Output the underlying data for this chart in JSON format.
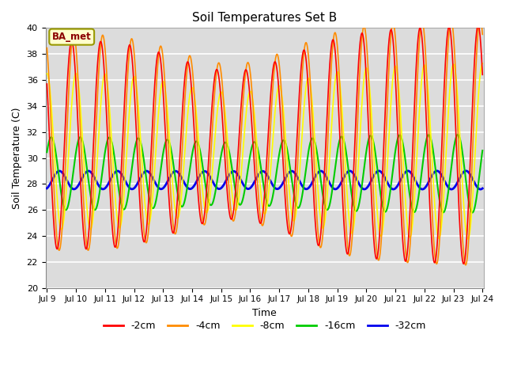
{
  "title": "Soil Temperatures Set B",
  "xlabel": "Time",
  "ylabel": "Soil Temperature (C)",
  "ylim": [
    20,
    40
  ],
  "xlim_days": [
    9,
    24
  ],
  "annotation": "BA_met",
  "series_order": [
    "-32cm",
    "-16cm",
    "-8cm",
    "-4cm",
    "-2cm"
  ],
  "colors": {
    "-2cm": "#FF0000",
    "-4cm": "#FF8C00",
    "-8cm": "#FFFF00",
    "-16cm": "#00CC00",
    "-32cm": "#0000EE"
  },
  "amplitudes": {
    "-2cm": 8.0,
    "-4cm": 8.3,
    "-8cm": 6.0,
    "-16cm": 2.8,
    "-32cm": 0.7
  },
  "means": {
    "-2cm": 31.0,
    "-4cm": 31.2,
    "-8cm": 30.5,
    "-16cm": 28.8,
    "-32cm": 28.3
  },
  "phase_lags": {
    "-2cm": 0.0,
    "-4cm": 0.07,
    "-8cm": 0.15,
    "-16cm": 0.3,
    "-32cm": 0.58
  },
  "background_color": "#DCDCDC",
  "grid_color": "#FFFFFF",
  "tick_labels": [
    "Jul 9",
    "Jul 10",
    "Jul 11",
    "Jul 12",
    "Jul 13",
    "Jul 14",
    "Jul 15",
    "Jul 16",
    "Jul 17",
    "Jul 18",
    "Jul 19",
    "Jul 20",
    "Jul 21",
    "Jul 22",
    "Jul 23",
    "Jul 24"
  ],
  "tick_positions": [
    9,
    10,
    11,
    12,
    13,
    14,
    15,
    16,
    17,
    18,
    19,
    20,
    21,
    22,
    23,
    24
  ]
}
